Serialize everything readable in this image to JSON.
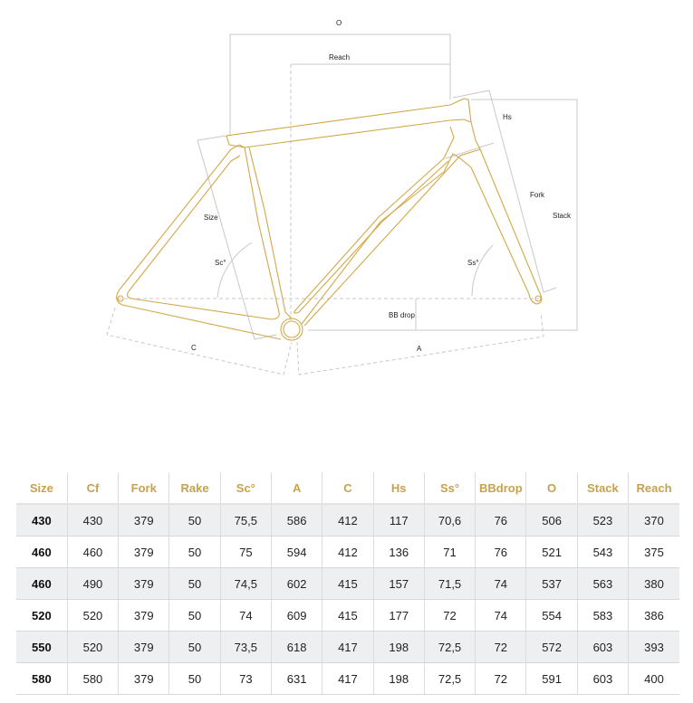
{
  "diagram": {
    "labels": {
      "o": "O",
      "reach": "Reach",
      "hs": "Hs",
      "fork": "Fork",
      "stack": "Stack",
      "size": "Size",
      "sc": "Sc°",
      "ss": "Ss°",
      "bb_drop": "BB drop",
      "c": "C",
      "a": "A"
    },
    "frame_color": "#d2a849",
    "guide_color": "#c8c8c8"
  },
  "table": {
    "header_color": "#c9a14a",
    "columns": [
      "Size",
      "Cf",
      "Fork",
      "Rake",
      "Sc°",
      "A",
      "C",
      "Hs",
      "Ss°",
      "BBdrop",
      "O",
      "Stack",
      "Reach"
    ],
    "rows": [
      [
        "430",
        "430",
        "379",
        "50",
        "75,5",
        "586",
        "412",
        "117",
        "70,6",
        "76",
        "506",
        "523",
        "370"
      ],
      [
        "460",
        "460",
        "379",
        "50",
        "75",
        "594",
        "412",
        "136",
        "71",
        "76",
        "521",
        "543",
        "375"
      ],
      [
        "460",
        "490",
        "379",
        "50",
        "74,5",
        "602",
        "415",
        "157",
        "71,5",
        "74",
        "537",
        "563",
        "380"
      ],
      [
        "520",
        "520",
        "379",
        "50",
        "74",
        "609",
        "415",
        "177",
        "72",
        "74",
        "554",
        "583",
        "386"
      ],
      [
        "550",
        "520",
        "379",
        "50",
        "73,5",
        "618",
        "417",
        "198",
        "72,5",
        "72",
        "572",
        "603",
        "393"
      ],
      [
        "580",
        "580",
        "379",
        "50",
        "73",
        "631",
        "417",
        "198",
        "72,5",
        "72",
        "591",
        "603",
        "400"
      ]
    ]
  }
}
